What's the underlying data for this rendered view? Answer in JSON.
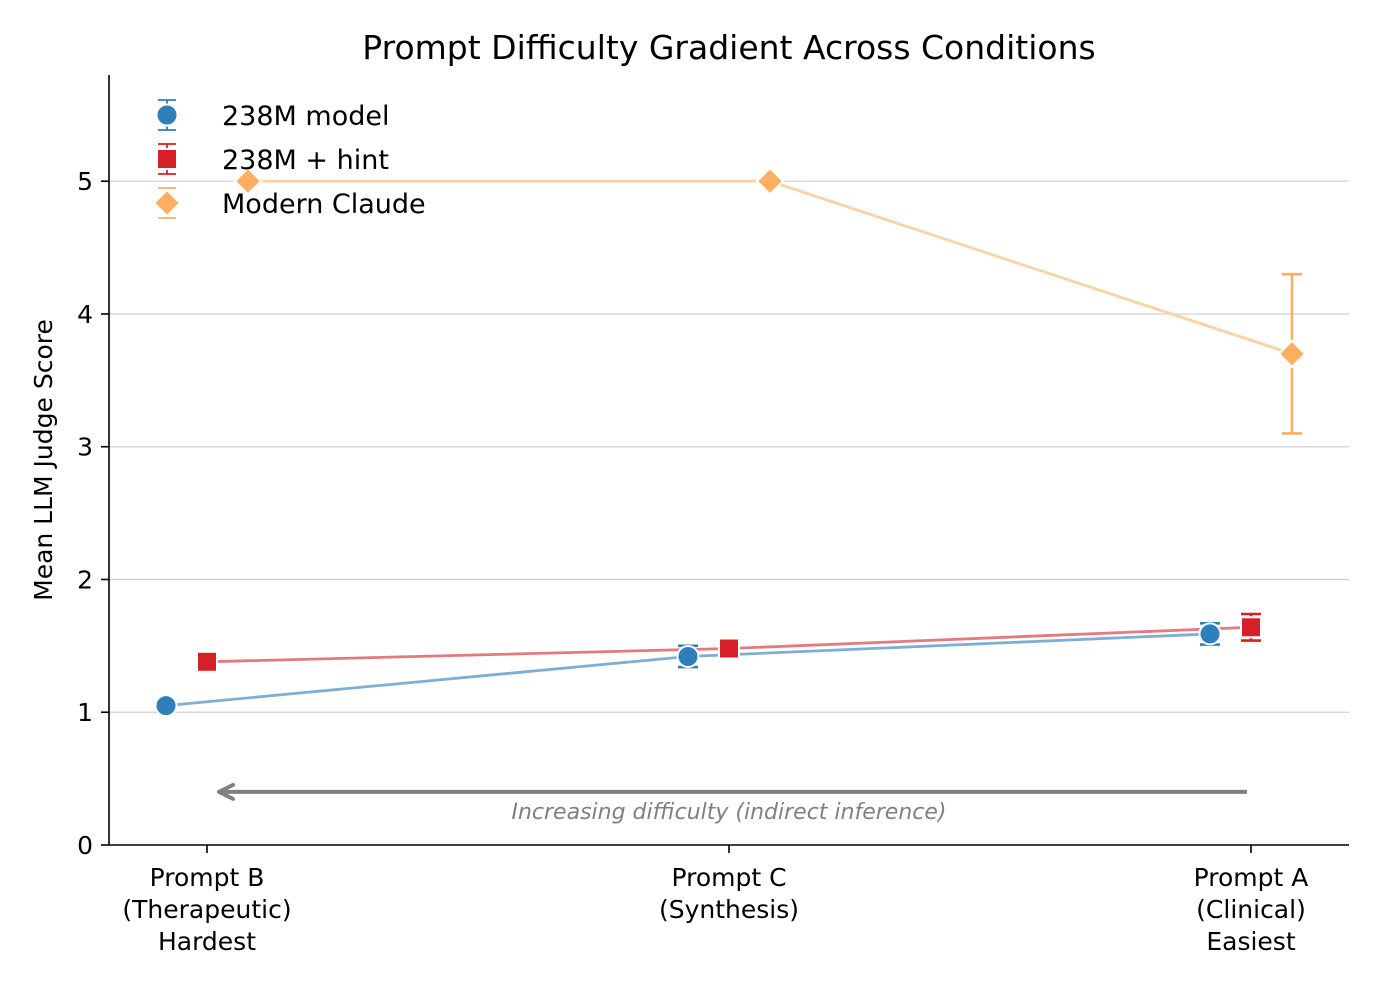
{
  "chart_data": {
    "type": "line",
    "title": "Prompt Difficulty Gradient Across Conditions",
    "xlabel": "",
    "ylabel": "Mean LLM Judge Score",
    "ylim": [
      0,
      5.8
    ],
    "yticks": [
      0,
      1,
      2,
      3,
      4,
      5
    ],
    "grid": "horizontal",
    "legend_position": "top-left",
    "categories": [
      [
        "Prompt B",
        "(Therapeutic)",
        "Hardest"
      ],
      [
        "Prompt C",
        "(Synthesis)"
      ],
      [
        "Prompt A",
        "(Clinical)",
        "Easiest"
      ]
    ],
    "series": [
      {
        "name": "238M model",
        "marker": "circle",
        "color": "#2f7fbc",
        "line_color": "#7faed4",
        "values": [
          1.05,
          1.42,
          1.59
        ],
        "errors": [
          0.0,
          0.08,
          0.08
        ]
      },
      {
        "name": "238M + hint",
        "marker": "square",
        "color": "#d62027",
        "line_color": "#e47a7d",
        "values": [
          1.38,
          1.48,
          1.64
        ],
        "errors": [
          0.0,
          0.0,
          0.1
        ]
      },
      {
        "name": "Modern Claude",
        "marker": "diamond",
        "color": "#fdae61",
        "line_color": "#fcd1a4",
        "values": [
          5.0,
          5.0,
          3.7
        ],
        "errors": [
          0.0,
          0.0,
          0.6
        ]
      }
    ],
    "annotation": {
      "text": "Increasing difficulty (indirect inference)",
      "arrow_from": "Prompt A",
      "arrow_to": "Prompt B",
      "y": 0.4
    }
  }
}
